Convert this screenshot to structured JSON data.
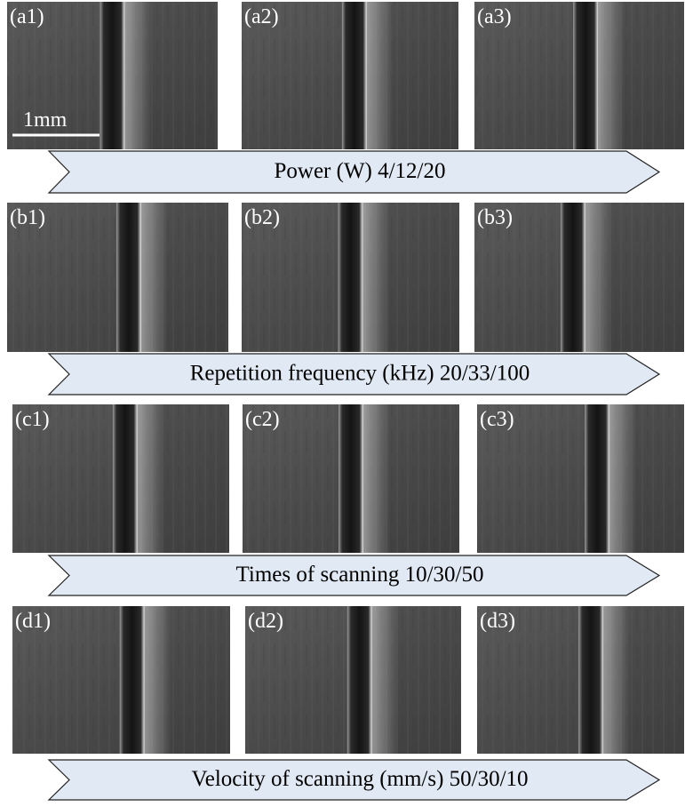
{
  "rows": [
    {
      "panels": [
        "(a1)",
        "(a2)",
        "(a3)"
      ],
      "arrow": "Power (W) 4/12/20"
    },
    {
      "panels": [
        "(b1)",
        "(b2)",
        "(b3)"
      ],
      "arrow": "Repetition frequency (kHz) 20/33/100"
    },
    {
      "panels": [
        "(c1)",
        "(c2)",
        "(c3)"
      ],
      "arrow": "Times of scanning 10/30/50"
    },
    {
      "panels": [
        "(d1)",
        "(d2)",
        "(d3)"
      ],
      "arrow": "Velocity of scanning (mm/s) 50/30/10"
    }
  ],
  "scale_bar": "1mm"
}
